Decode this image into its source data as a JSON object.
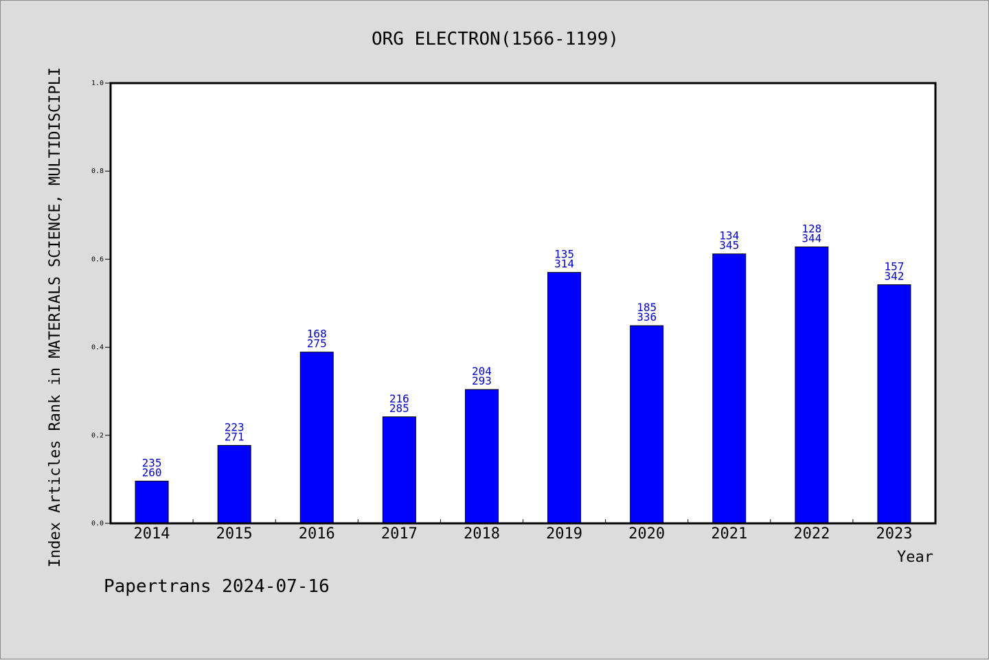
{
  "chart_data": {
    "type": "bar",
    "title": "ORG ELECTRON(1566-1199)",
    "xlabel": "Year",
    "ylabel": "Index Articles Rank in MATERIALS SCIENCE, MULTIDISCIPLI",
    "ylim": [
      0.0,
      1.0
    ],
    "yticks": [
      "0.0",
      "0.2",
      "0.4",
      "0.6",
      "0.8",
      "1.0"
    ],
    "grid": false,
    "categories": [
      "2014",
      "2015",
      "2016",
      "2017",
      "2018",
      "2019",
      "2020",
      "2021",
      "2022",
      "2023"
    ],
    "values": [
      0.096,
      0.177,
      0.389,
      0.242,
      0.304,
      0.57,
      0.449,
      0.612,
      0.628,
      0.542
    ],
    "ranks": [
      "235",
      "223",
      "168",
      "216",
      "204",
      "135",
      "185",
      "134",
      "128",
      "157"
    ],
    "totals": [
      "260",
      "271",
      "275",
      "285",
      "293",
      "314",
      "336",
      "345",
      "344",
      "342"
    ],
    "bar_color": "#0000ff",
    "label_color": "#0000cc"
  },
  "footer": "Papertrans 2024-07-16"
}
